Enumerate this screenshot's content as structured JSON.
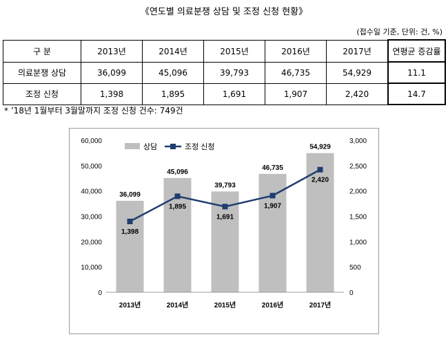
{
  "title": "《연도별 의료분쟁 상담 및 조정 신청 현황》",
  "unit": "(접수일 기준, 단위: 건, %)",
  "table": {
    "headers": [
      "구 분",
      "2013년",
      "2014년",
      "2015년",
      "2016년",
      "2017년",
      "연평균 증감률"
    ],
    "rows": [
      [
        "의료분쟁 상담",
        "36,099",
        "45,096",
        "39,793",
        "46,735",
        "54,929",
        "11.1"
      ],
      [
        "조정 신청",
        "1,398",
        "1,895",
        "1,691",
        "1,907",
        "2,420",
        "14.7"
      ]
    ]
  },
  "note": "* ’18년 1월부터 3월말까지 조정 신청 건수: 749건",
  "chart_data": {
    "type": "bar",
    "categories": [
      "2013년",
      "2014년",
      "2015년",
      "2016년",
      "2017년"
    ],
    "series": [
      {
        "name": "상담",
        "type": "bar",
        "axis": "left",
        "values": [
          36099,
          45096,
          39793,
          46735,
          54929
        ],
        "labels": [
          "36,099",
          "45,096",
          "39,793",
          "46,735",
          "54,929"
        ]
      },
      {
        "name": "조정 신청",
        "type": "line",
        "axis": "right",
        "values": [
          1398,
          1895,
          1691,
          1907,
          2420
        ],
        "labels": [
          "1,398",
          "1,895",
          "1,691",
          "1,907",
          "2,420"
        ]
      }
    ],
    "ylim": [
      0,
      60000
    ],
    "yticks": [
      "0",
      "10,000",
      "20,000",
      "30,000",
      "40,000",
      "50,000",
      "60,000"
    ],
    "y2lim": [
      0,
      3000
    ],
    "y2ticks": [
      "0",
      "500",
      "1,000",
      "1,500",
      "2,000",
      "2,500",
      "3,000"
    ],
    "legend": "top-left",
    "grid": false,
    "colors": {
      "bar": "#bfbfbf",
      "line": "#1f3d6e",
      "text": "#000000"
    }
  }
}
